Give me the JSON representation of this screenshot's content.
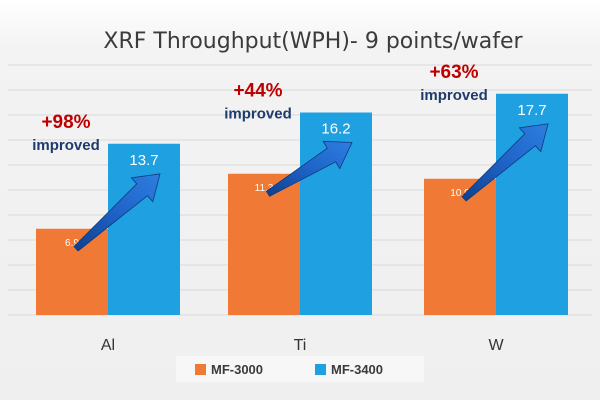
{
  "chart_data": {
    "type": "bar",
    "title": "XRF Throughput(WPH)- 9 points/wafer",
    "categories": [
      "Al",
      "Ti",
      "W"
    ],
    "series": [
      {
        "name": "MF-3000",
        "values": [
          6.9,
          11.3,
          10.9
        ],
        "color": "#f07a35"
      },
      {
        "name": "MF-3400",
        "values": [
          13.7,
          16.2,
          17.7
        ],
        "color": "#1fa0e0"
      }
    ],
    "annotations": [
      {
        "category": "Al",
        "percent": "+98%",
        "text": "improved"
      },
      {
        "category": "Ti",
        "percent": "+44%",
        "text": "improved"
      },
      {
        "category": "W",
        "percent": "+63%",
        "text": "improved"
      }
    ],
    "ylim": [
      0,
      20
    ],
    "grid": true,
    "legend": "bottom-center",
    "colors": {
      "plot_bg": "#f2f2f2",
      "grid": "#d9d9d9",
      "arrow": "#1a56b0",
      "percent": "#c00000",
      "improved": "#1f3b6b"
    }
  }
}
